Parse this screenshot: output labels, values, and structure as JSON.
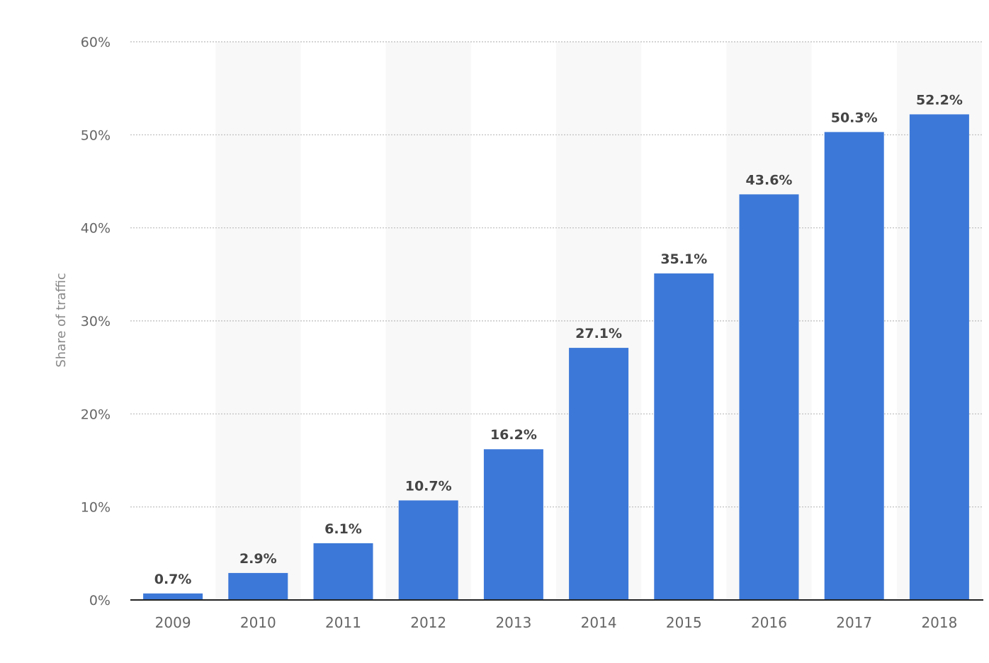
{
  "chart_data": {
    "type": "bar",
    "categories": [
      "2009",
      "2010",
      "2011",
      "2012",
      "2013",
      "2014",
      "2015",
      "2016",
      "2017",
      "2018"
    ],
    "values": [
      0.7,
      2.9,
      6.1,
      10.7,
      16.2,
      27.1,
      35.1,
      43.6,
      50.3,
      52.2
    ],
    "value_labels": [
      "0.7%",
      "2.9%",
      "6.1%",
      "10.7%",
      "16.2%",
      "27.1%",
      "35.1%",
      "43.6%",
      "50.3%",
      "52.2%"
    ],
    "title": "",
    "xlabel": "",
    "ylabel": "Share of traffic",
    "ylim": [
      0,
      60
    ],
    "yticks": [
      0,
      10,
      20,
      30,
      40,
      50,
      60
    ],
    "ytick_labels": [
      "0%",
      "10%",
      "20%",
      "30%",
      "40%",
      "50%",
      "60%"
    ],
    "grid": true,
    "bar_color": "#3c78d8",
    "alternating_band_color": "#f8f8f8"
  }
}
